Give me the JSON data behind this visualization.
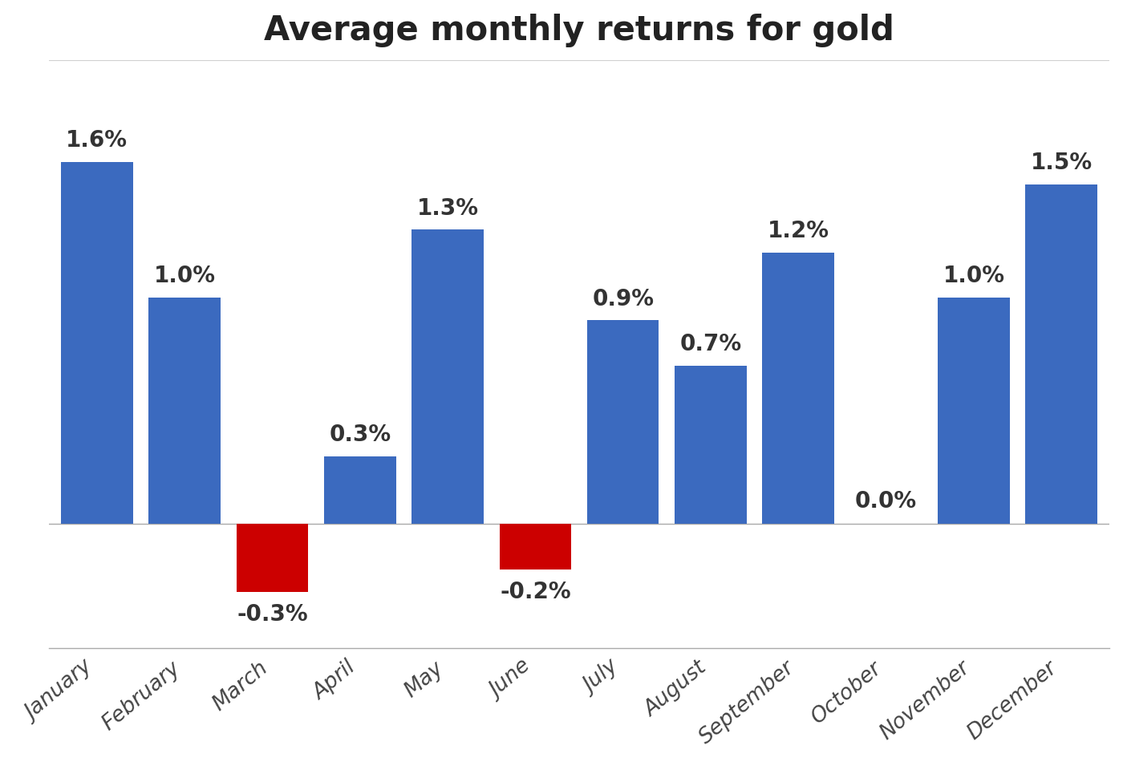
{
  "title": "Average monthly returns for gold",
  "categories": [
    "January",
    "February",
    "March",
    "April",
    "May",
    "June",
    "July",
    "August",
    "September",
    "October",
    "November",
    "December"
  ],
  "values": [
    1.6,
    1.0,
    -0.3,
    0.3,
    1.3,
    -0.2,
    0.9,
    0.7,
    1.2,
    0.0,
    1.0,
    1.5
  ],
  "bar_colors": [
    "#3b6abf",
    "#3b6abf",
    "#cc0000",
    "#3b6abf",
    "#3b6abf",
    "#cc0000",
    "#3b6abf",
    "#3b6abf",
    "#3b6abf",
    "#3b6abf",
    "#3b6abf",
    "#3b6abf"
  ],
  "display_labels": [
    "1.6%",
    "1.0%",
    "-0.3%",
    "0.3%",
    "1.3%",
    "-0.2%",
    "0.9%",
    "0.7%",
    "1.2%",
    "0.0%",
    "1.0%",
    "1.5%"
  ],
  "ylim": [
    -0.55,
    2.05
  ],
  "title_fontsize": 30,
  "label_fontsize": 20,
  "tick_fontsize": 19,
  "background_color": "#ffffff",
  "grid_color": "#d0d0d0",
  "bar_width": 0.82
}
